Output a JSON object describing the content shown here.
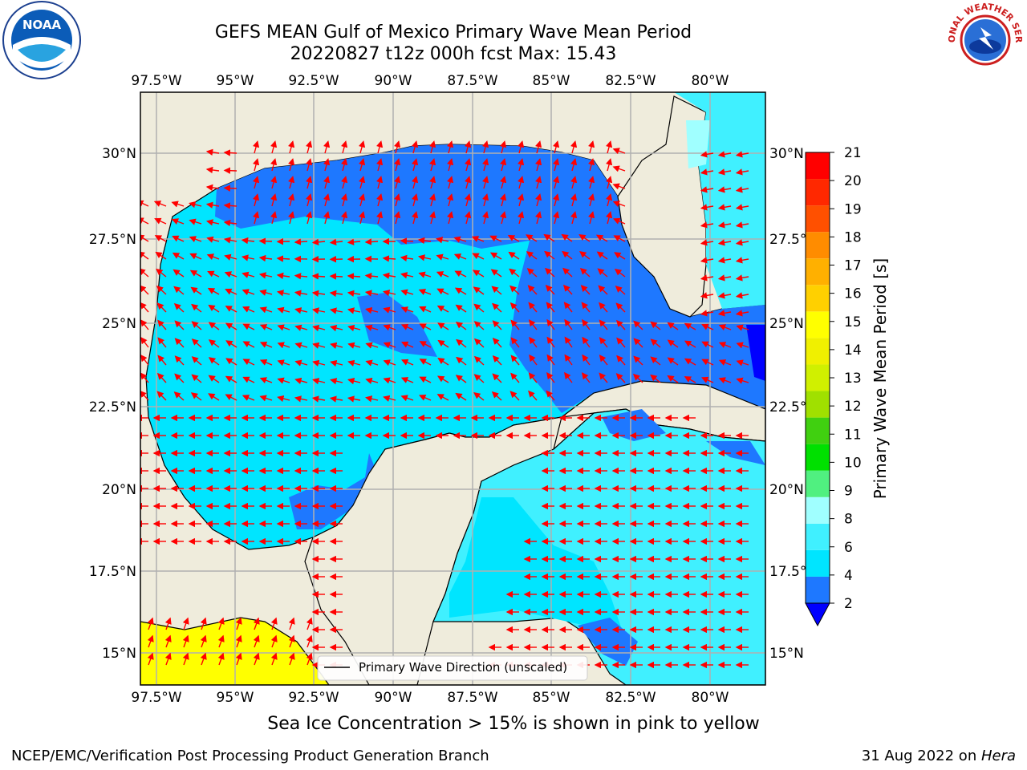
{
  "title": {
    "line1": "GEFS MEAN Gulf of Mexico Primary Wave Mean Period",
    "line2": "20220827 t12z 000h fcst   Max: 15.43"
  },
  "map": {
    "lon_ticks_top": [
      "97.5°W",
      "95°W",
      "92.5°W",
      "90°W",
      "87.5°W",
      "85°W",
      "82.5°W",
      "80°W"
    ],
    "lon_ticks_bottom": [
      "97.5°W",
      "95°W",
      "92.5°W",
      "90°W",
      "87.5°W",
      "85°W",
      "82.5°W",
      "80°W"
    ],
    "lat_ticks_left": [
      "30°N",
      "27.5°N",
      "25°N",
      "22.5°N",
      "20°N",
      "17.5°N",
      "15°N"
    ],
    "lat_ticks_right": [
      "30°N",
      "27.5°N",
      "25°N",
      "22.5°N",
      "20°N",
      "17.5°N",
      "15°N"
    ],
    "legend_label": "Primary Wave Direction (unscaled)",
    "colors": {
      "land": "#efecdc",
      "band_2_4": "#1e78ff",
      "band_4_6": "#00e5ff",
      "band_6_8": "#40f0ff",
      "band_8_9": "#a0ffff",
      "band_lt_2": "#0000ff",
      "band_15_16": "#ffff00",
      "arrow": "#ff0000",
      "grid": "#b0b0b0"
    }
  },
  "colorbar": {
    "label": "Primary Wave Mean Period [s]",
    "ticks": [
      "2",
      "4",
      "6",
      "8",
      "9",
      "10",
      "11",
      "12",
      "13",
      "14",
      "15",
      "16",
      "17",
      "18",
      "19",
      "20",
      "21"
    ],
    "band_colors": [
      "#1e78ff",
      "#00e5ff",
      "#40f0ff",
      "#a0ffff",
      "#50f080",
      "#00e000",
      "#40d010",
      "#a0e000",
      "#d0f000",
      "#f0f000",
      "#ffff00",
      "#ffd000",
      "#ffb000",
      "#ff8c00",
      "#ff5000",
      "#ff2800",
      "#ff0000"
    ],
    "under_color": "#0000ff"
  },
  "ice_note": "Sea Ice Concentration > 15% is shown in pink to yellow",
  "footer": {
    "left": "NCEP/EMC/Verification Post Processing Product Generation Branch",
    "right_date": "31 Aug 2022 on ",
    "right_host": "Hera"
  },
  "logos": {
    "noaa_text": "NOAA",
    "nws_text": "NATIONAL WEATHER SERVICE"
  }
}
